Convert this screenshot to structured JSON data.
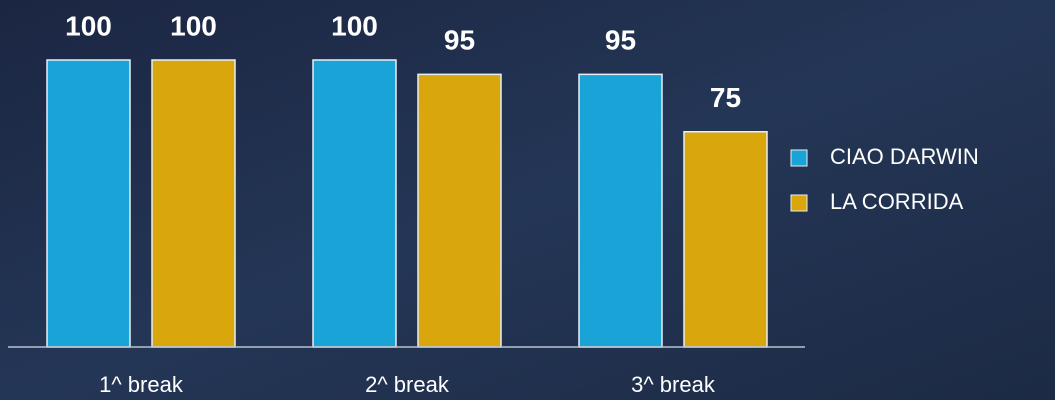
{
  "chart_data": {
    "type": "bar",
    "categories": [
      "1^ break",
      "2^ break",
      "3^ break"
    ],
    "series": [
      {
        "name": "CIAO DARWIN",
        "color": "#1aa3d6",
        "values": [
          100,
          100,
          95
        ]
      },
      {
        "name": "LA CORRIDA",
        "color": "#d9a60c",
        "values": [
          100,
          95,
          75
        ]
      }
    ],
    "ylim": [
      0,
      100
    ],
    "legend": "right"
  }
}
